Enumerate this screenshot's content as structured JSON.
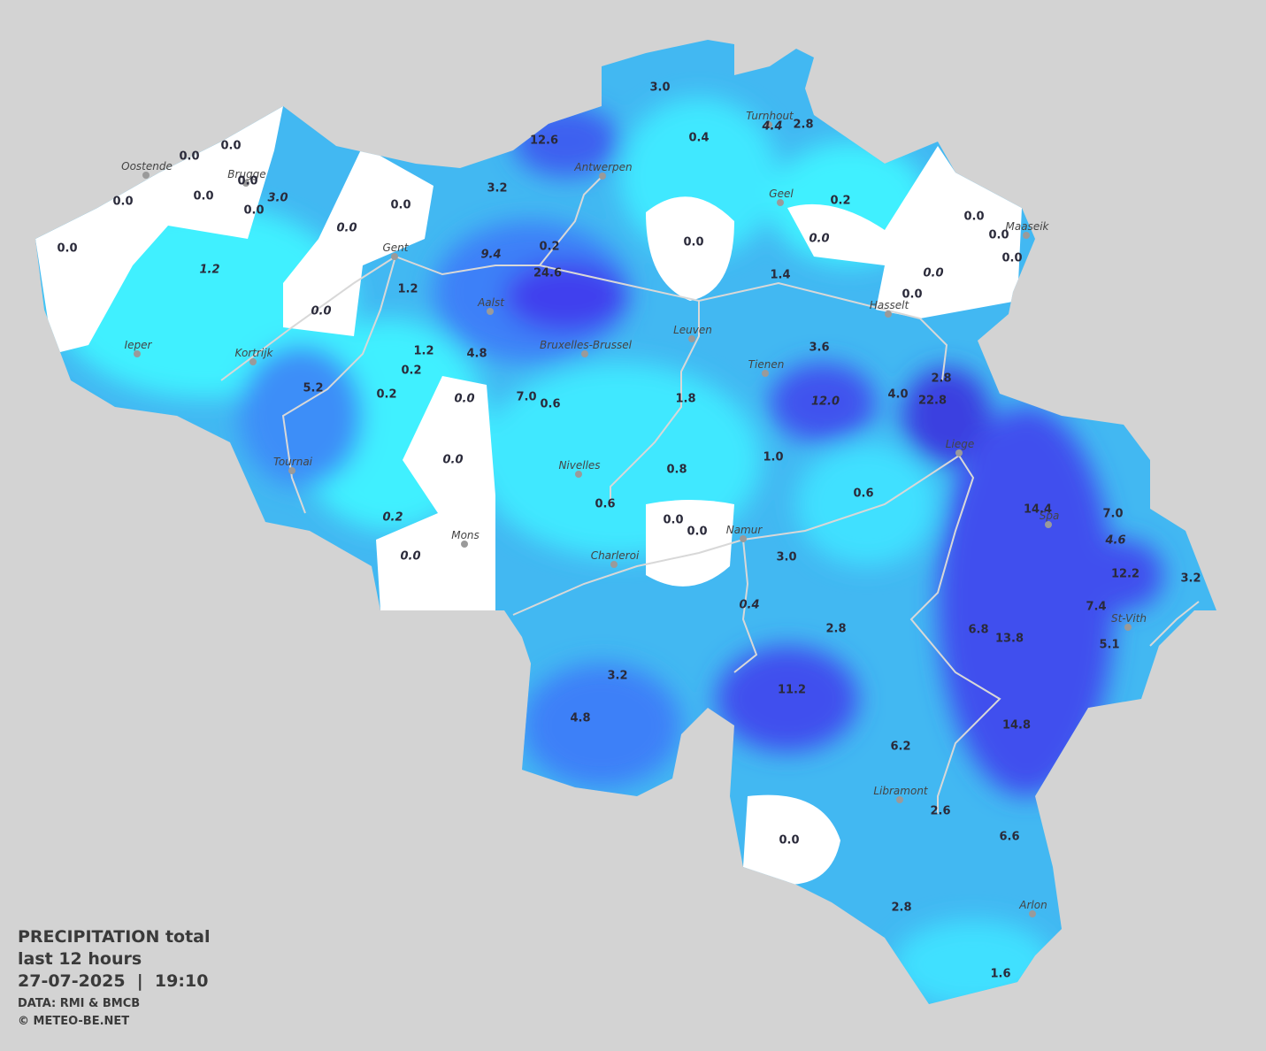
{
  "legend": {
    "title": "PRECIPITATION total",
    "period": "last 12 hours",
    "timestamp": "27-07-2025  |  19:10",
    "source": "DATA: RMI & BMCB",
    "copyright": "© METEO-BE.NET"
  },
  "cities": [
    {
      "name": "Oostende"
    },
    {
      "name": "Brugge"
    },
    {
      "name": "Gent"
    },
    {
      "name": "Antwerpen"
    },
    {
      "name": "Turnhout"
    },
    {
      "name": "Geel"
    },
    {
      "name": "Maaseik"
    },
    {
      "name": "Hasselt"
    },
    {
      "name": "Aalst"
    },
    {
      "name": "Ieper"
    },
    {
      "name": "Kortrijk"
    },
    {
      "name": "Bruxelles-Brussel"
    },
    {
      "name": "Leuven"
    },
    {
      "name": "Tienen"
    },
    {
      "name": "Liege"
    },
    {
      "name": "Tournai"
    },
    {
      "name": "Nivelles"
    },
    {
      "name": "Mons"
    },
    {
      "name": "Namur"
    },
    {
      "name": "Charleroi"
    },
    {
      "name": "Spa"
    },
    {
      "name": "St-Vith"
    },
    {
      "name": "Libramont"
    },
    {
      "name": "Arlon"
    }
  ],
  "stations": [
    {
      "value": "0.0",
      "italic": false
    },
    {
      "value": "0.0",
      "italic": false
    },
    {
      "value": "0.0",
      "italic": false
    },
    {
      "value": "0.0",
      "italic": false
    },
    {
      "value": "0.0",
      "italic": false
    },
    {
      "value": "0.0",
      "italic": false
    },
    {
      "value": "3.0",
      "italic": true
    },
    {
      "value": "0.0",
      "italic": false
    },
    {
      "value": "1.2",
      "italic": true
    },
    {
      "value": "0.0",
      "italic": true
    },
    {
      "value": "0.0",
      "italic": false
    },
    {
      "value": "0.0",
      "italic": true
    },
    {
      "value": "1.2",
      "italic": false
    },
    {
      "value": "1.2",
      "italic": false
    },
    {
      "value": "0.2",
      "italic": false
    },
    {
      "value": "0.2",
      "italic": false
    },
    {
      "value": "5.2",
      "italic": false
    },
    {
      "value": "4.8",
      "italic": false
    },
    {
      "value": "9.4",
      "italic": true
    },
    {
      "value": "24.6",
      "italic": false
    },
    {
      "value": "0.2",
      "italic": false
    },
    {
      "value": "3.2",
      "italic": false
    },
    {
      "value": "12.6",
      "italic": false
    },
    {
      "value": "3.0",
      "italic": false
    },
    {
      "value": "0.4",
      "italic": false
    },
    {
      "value": "4.4",
      "italic": true
    },
    {
      "value": "2.8",
      "italic": false
    },
    {
      "value": "0.2",
      "italic": false
    },
    {
      "value": "0.0",
      "italic": false
    },
    {
      "value": "0.0",
      "italic": true
    },
    {
      "value": "1.4",
      "italic": false
    },
    {
      "value": "0.0",
      "italic": false
    },
    {
      "value": "0.0",
      "italic": false
    },
    {
      "value": "0.0",
      "italic": false
    },
    {
      "value": "0.0",
      "italic": true
    },
    {
      "value": "0.0",
      "italic": false
    },
    {
      "value": "3.6",
      "italic": false
    },
    {
      "value": "12.0",
      "italic": true
    },
    {
      "value": "4.0",
      "italic": false
    },
    {
      "value": "22.8",
      "italic": false
    },
    {
      "value": "2.8",
      "italic": false
    },
    {
      "value": "7.0",
      "italic": false
    },
    {
      "value": "0.6",
      "italic": false
    },
    {
      "value": "0.0",
      "italic": true
    },
    {
      "value": "0.0",
      "italic": true
    },
    {
      "value": "0.2",
      "italic": true
    },
    {
      "value": "0.0",
      "italic": true
    },
    {
      "value": "1.8",
      "italic": false
    },
    {
      "value": "1.0",
      "italic": false
    },
    {
      "value": "0.8",
      "italic": false
    },
    {
      "value": "0.6",
      "italic": false
    },
    {
      "value": "0.6",
      "italic": false
    },
    {
      "value": "0.0",
      "italic": false
    },
    {
      "value": "0.0",
      "italic": false
    },
    {
      "value": "3.0",
      "italic": false
    },
    {
      "value": "0.4",
      "italic": true
    },
    {
      "value": "2.8",
      "italic": false
    },
    {
      "value": "14.4",
      "italic": false
    },
    {
      "value": "7.0",
      "italic": false
    },
    {
      "value": "4.6",
      "italic": true
    },
    {
      "value": "12.2",
      "italic": false
    },
    {
      "value": "3.2",
      "italic": false
    },
    {
      "value": "7.4",
      "italic": false
    },
    {
      "value": "5.1",
      "italic": false
    },
    {
      "value": "6.8",
      "italic": false
    },
    {
      "value": "13.8",
      "italic": false
    },
    {
      "value": "3.2",
      "italic": false
    },
    {
      "value": "4.8",
      "italic": false
    },
    {
      "value": "11.2",
      "italic": false
    },
    {
      "value": "14.8",
      "italic": false
    },
    {
      "value": "6.2",
      "italic": false
    },
    {
      "value": "2.6",
      "italic": false
    },
    {
      "value": "6.6",
      "italic": false
    },
    {
      "value": "0.0",
      "italic": false
    },
    {
      "value": "2.8",
      "italic": false
    },
    {
      "value": "1.6",
      "italic": false
    }
  ]
}
